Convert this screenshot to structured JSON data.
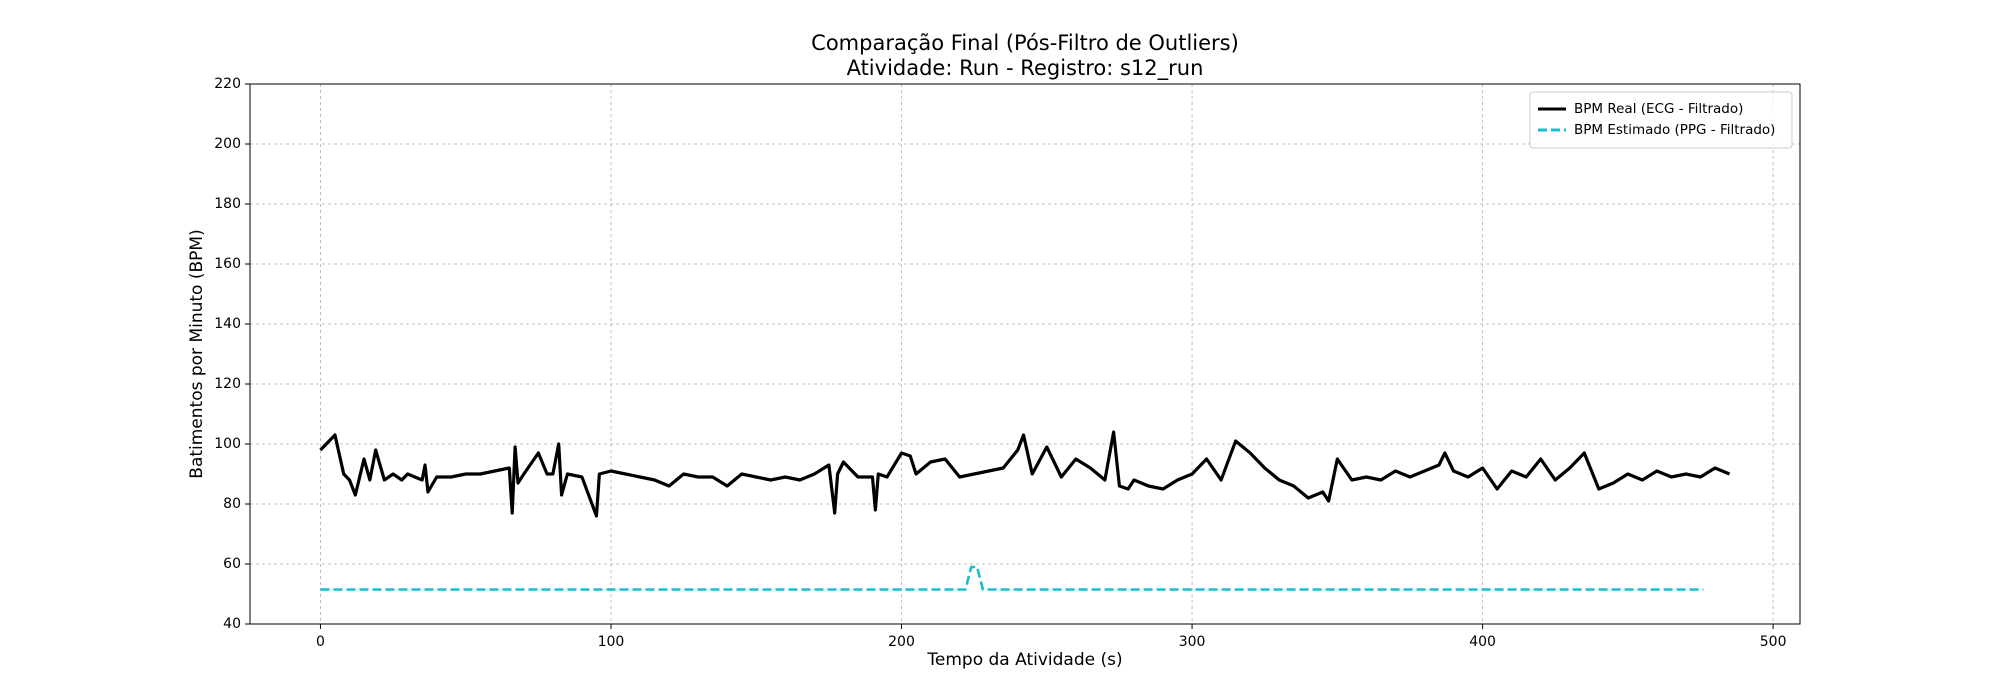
{
  "chart_data": {
    "type": "line",
    "title": "Comparação Final (Pós-Filtro de Outliers)",
    "subtitle": "Atividade: Run - Registro: s12_run",
    "x_label": "Tempo da Atividade (s)",
    "y_label": "Batimentos por Minuto (BPM)",
    "xlim": [
      -24.25,
      509.25
    ],
    "xticks": [
      0,
      100,
      200,
      300,
      400,
      500
    ],
    "ylim": [
      40,
      220
    ],
    "yticks": [
      40,
      60,
      80,
      100,
      120,
      140,
      160,
      180,
      200,
      220
    ],
    "grid": true,
    "legend": "upper right",
    "series": [
      {
        "name": "BPM Real (ECG - Filtrado)",
        "color": "#000000",
        "dash": "solid",
        "x": [
          0,
          2,
          5,
          8,
          10,
          12,
          15,
          17,
          19,
          22,
          25,
          28,
          30,
          35,
          36,
          37,
          40,
          45,
          50,
          55,
          60,
          65,
          66,
          67,
          68,
          70,
          75,
          78,
          80,
          82,
          83,
          85,
          90,
          95,
          96,
          100,
          105,
          110,
          115,
          120,
          125,
          130,
          135,
          140,
          145,
          150,
          155,
          160,
          165,
          170,
          175,
          177,
          178,
          180,
          185,
          190,
          191,
          192,
          195,
          200,
          203,
          205,
          210,
          215,
          220,
          225,
          230,
          235,
          240,
          242,
          245,
          250,
          255,
          260,
          265,
          270,
          273,
          275,
          278,
          280,
          285,
          290,
          295,
          300,
          305,
          310,
          315,
          320,
          325,
          330,
          335,
          340,
          345,
          347,
          350,
          355,
          360,
          365,
          370,
          375,
          380,
          385,
          387,
          390,
          395,
          400,
          405,
          410,
          415,
          420,
          425,
          430,
          435,
          440,
          445,
          450,
          455,
          460,
          465,
          470,
          475,
          480,
          485
        ],
        "values": [
          98,
          100,
          103,
          90,
          88,
          83,
          95,
          88,
          98,
          88,
          90,
          88,
          90,
          88,
          93,
          84,
          89,
          89,
          90,
          90,
          91,
          92,
          77,
          99,
          87,
          90,
          97,
          90,
          90,
          100,
          83,
          90,
          89,
          76,
          90,
          91,
          90,
          89,
          88,
          86,
          90,
          89,
          89,
          86,
          90,
          89,
          88,
          89,
          88,
          90,
          93,
          77,
          90,
          94,
          89,
          89,
          78,
          90,
          89,
          97,
          96,
          90,
          94,
          95,
          89,
          90,
          91,
          92,
          98,
          103,
          90,
          99,
          89,
          95,
          92,
          88,
          104,
          86,
          85,
          88,
          86,
          85,
          88,
          90,
          95,
          88,
          101,
          97,
          92,
          88,
          86,
          82,
          84,
          81,
          95,
          88,
          89,
          88,
          91,
          89,
          91,
          93,
          97,
          91,
          89,
          92,
          85,
          91,
          89,
          95,
          88,
          92,
          97,
          85,
          87,
          90,
          88,
          91,
          89,
          90,
          89,
          92,
          90
        ]
      },
      {
        "name": "BPM Estimado (PPG - Filtrado)",
        "color": "#17becf",
        "dash": "dashed",
        "x": [
          0,
          222,
          224,
          225,
          226,
          228,
          476
        ],
        "values": [
          51.5,
          51.5,
          59,
          59,
          59,
          51.5,
          51.5
        ]
      }
    ]
  }
}
